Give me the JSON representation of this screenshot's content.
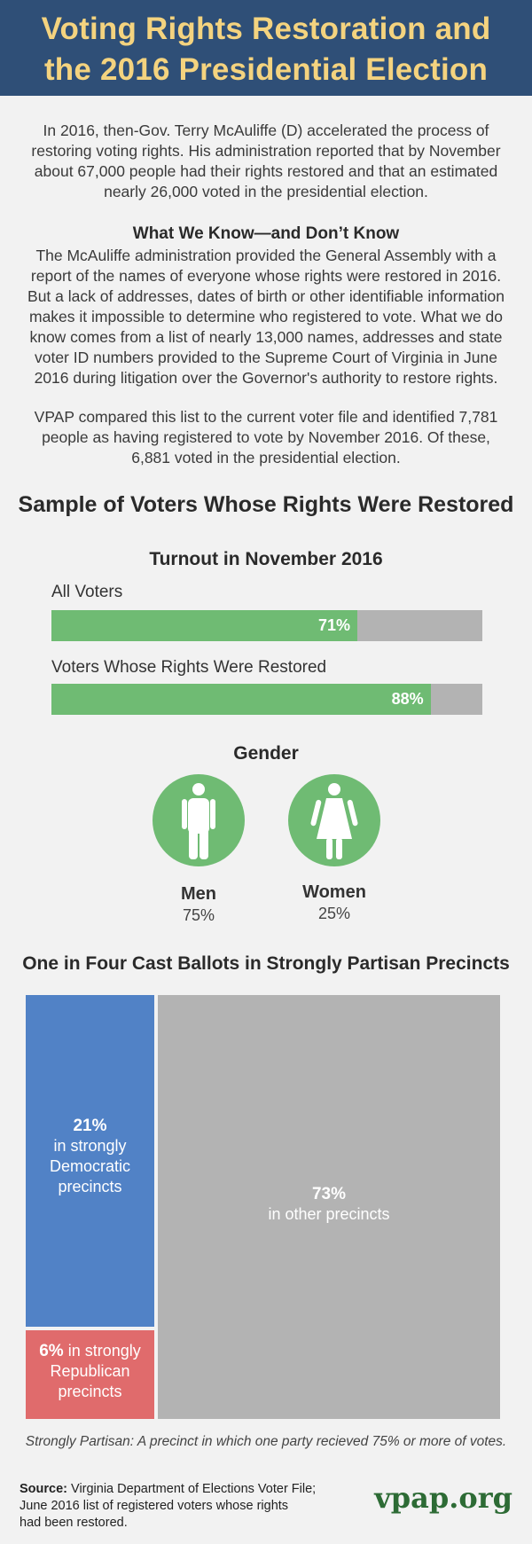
{
  "header": {
    "title_line1": "Voting Rights Restoration and",
    "title_line2": "the 2016 Presidential Election"
  },
  "intro": {
    "p1_lines": [
      "In 2016, then-Gov. Terry McAuliffe (D) accelerated the process of",
      "restoring voting rights. His administration reported that by November",
      "about 67,000 people had their rights restored and that an estimated",
      "nearly 26,000 voted in the presidential election."
    ],
    "subhead": "What We Know—and Don’t Know",
    "p2_lines": [
      "The McAuliffe administration provided the General Assembly with a",
      "report of the names of everyone whose rights were restored in 2016.",
      "But a lack of addresses, dates of birth or other identifiable information",
      "makes it impossible to determine who registered to vote. What we do",
      "know comes from a list of nearly 13,000 names, addresses and state",
      "voter ID numbers provided to the Supreme Court of Virginia in June",
      "2016 during litigation over the Governor's authority to restore rights."
    ],
    "p3_lines": [
      "VPAP compared this list to the current voter file and identified 7,781",
      "people as having registered to vote by November 2016. Of these,",
      "6,881 voted in the presidential election."
    ]
  },
  "section_title": "Sample of Voters Whose Rights Were Restored",
  "chart_data": [
    {
      "type": "bar",
      "title": "Turnout in November 2016",
      "categories": [
        "All Voters",
        "Voters Whose Rights Were Restored"
      ],
      "values": [
        71,
        88
      ],
      "value_labels": [
        "71%",
        "88%"
      ],
      "ylim": [
        0,
        100
      ]
    },
    {
      "type": "pie",
      "title": "Gender",
      "categories": [
        "Men",
        "Women"
      ],
      "values": [
        75,
        25
      ],
      "value_labels": [
        "75%",
        "25%"
      ]
    },
    {
      "type": "treemap",
      "title": "One in Four Cast Ballots in Strongly Partisan Precincts",
      "categories": [
        "in strongly Democratic precincts",
        "in strongly Republican precincts",
        "in other precincts"
      ],
      "values": [
        21,
        6,
        73
      ],
      "value_labels": [
        "21%",
        "6%",
        "73%"
      ],
      "colors": [
        "#5182c6",
        "#e06b6c",
        "#b3b3b3"
      ]
    }
  ],
  "treemap_text": {
    "dem_pct": "21%",
    "dem_lines": [
      "in strongly",
      "Democratic",
      "precincts"
    ],
    "rep_pct": "6%",
    "rep_line1_rest": " in strongly",
    "rep_lines": [
      "Republican",
      "precincts"
    ],
    "other_pct": "73%",
    "other_line": "in other precincts"
  },
  "footnote": "Strongly Partisan: A precinct in which one party recieved 75% or more of votes.",
  "source": {
    "label": "Source:",
    "line1": " Virginia Department of Elections Voter File;",
    "line2": "June 2016 list of registered voters whose rights",
    "line3": "had been restored."
  },
  "brand": "vpap.org",
  "colors": {
    "header_bg": "#2f4f77",
    "header_text": "#f4d37f",
    "green": "#6fbb73",
    "gray": "#b3b3b3",
    "democratic": "#5182c6",
    "republican": "#e06b6c",
    "brand": "#2d6b35"
  }
}
